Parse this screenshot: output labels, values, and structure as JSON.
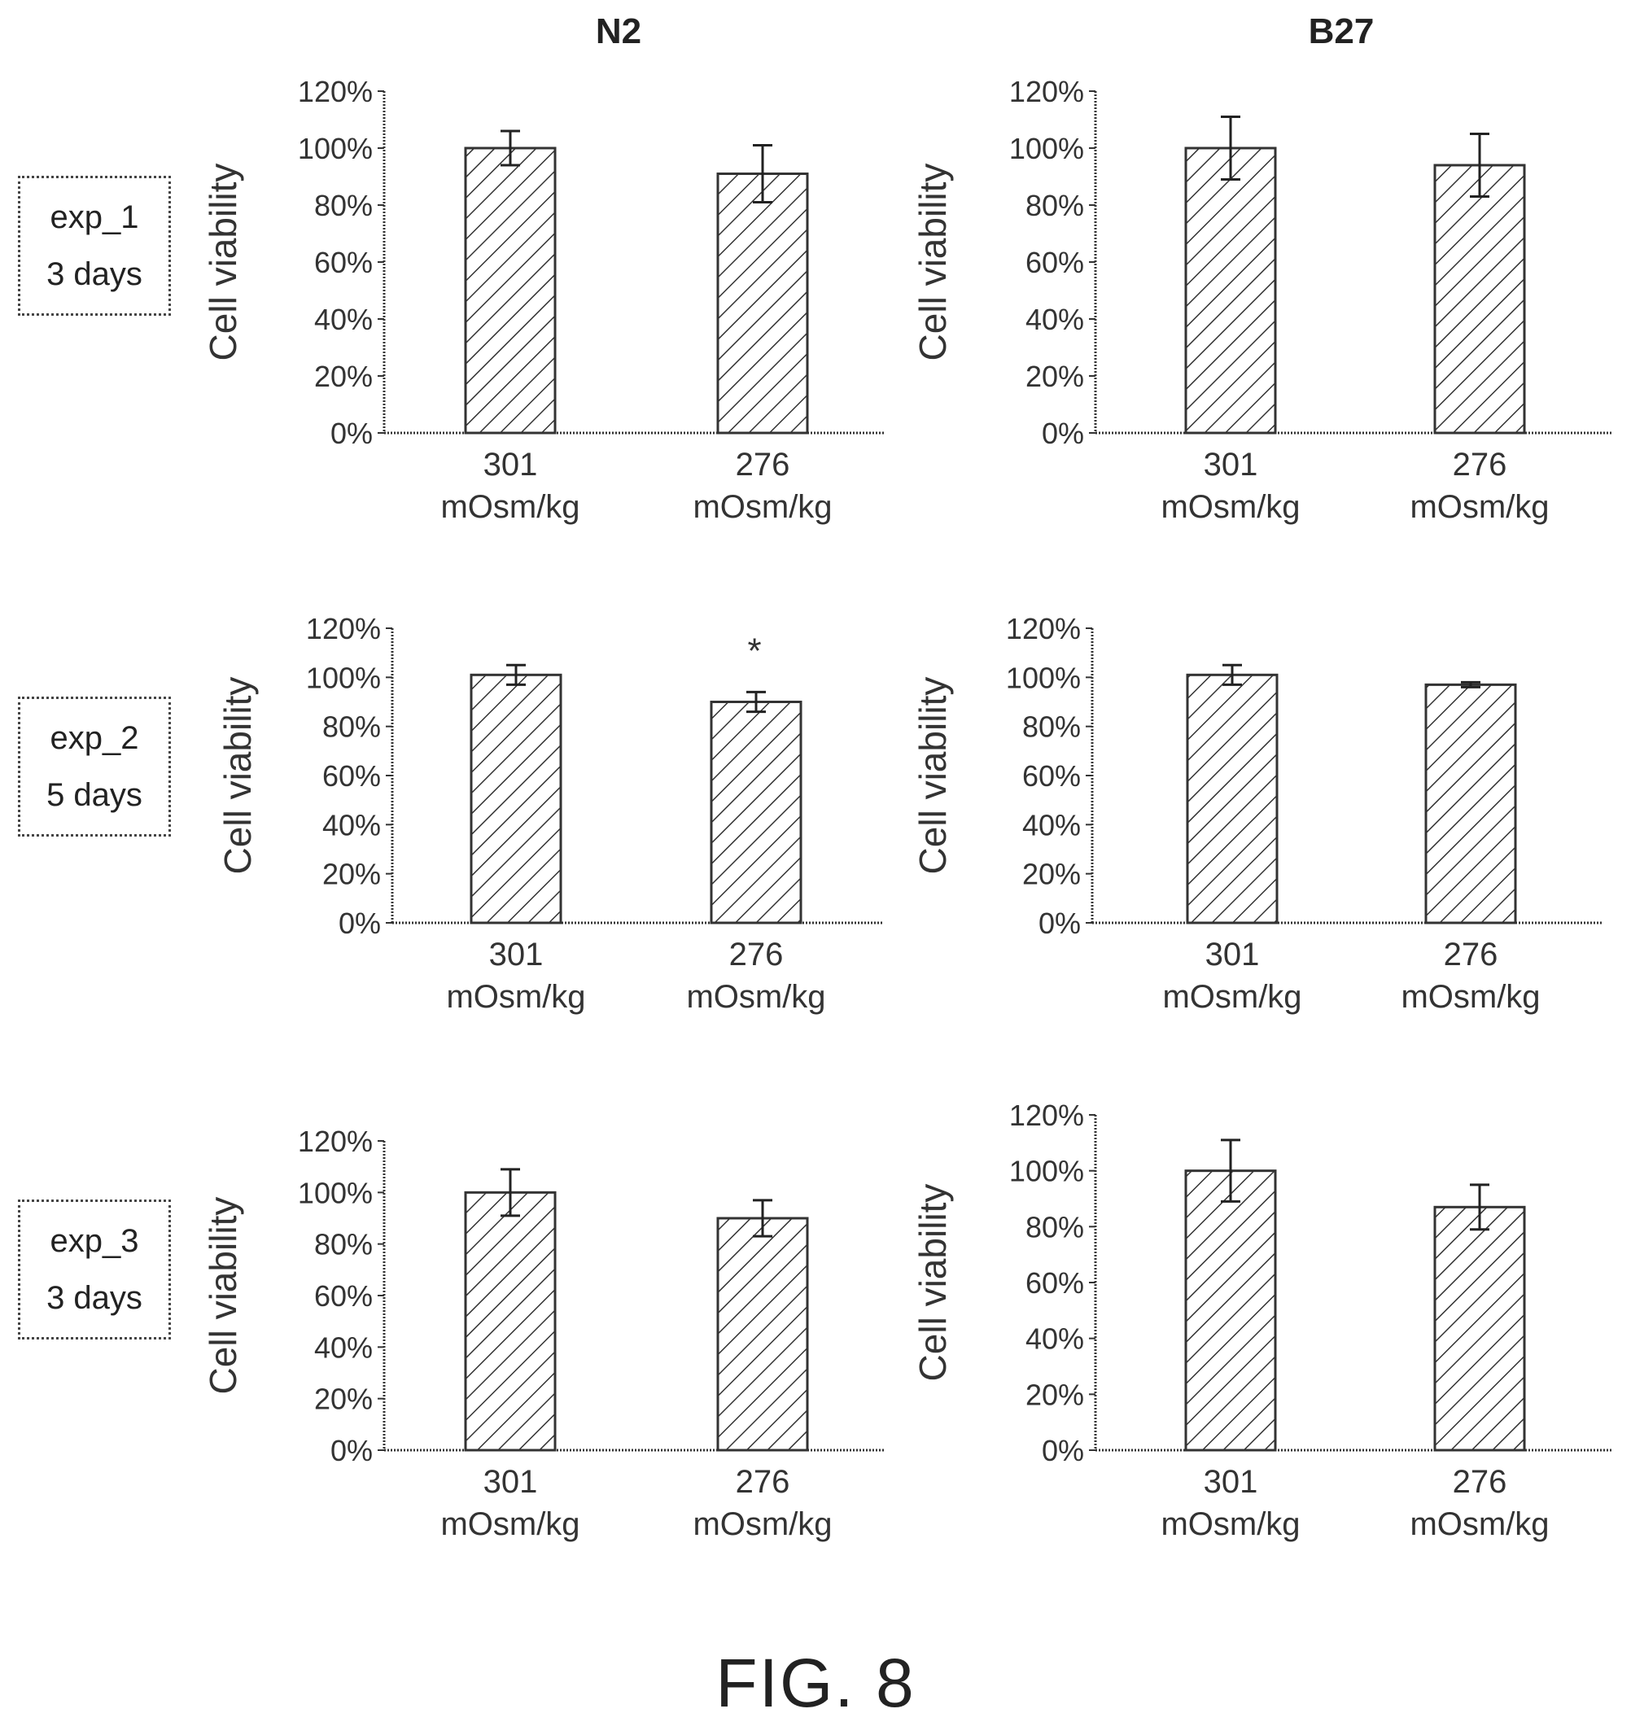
{
  "column_titles": [
    "N2",
    "B27"
  ],
  "row_labels": [
    {
      "line1": "exp_1",
      "line2": "3 days"
    },
    {
      "line1": "exp_2",
      "line2": "5 days"
    },
    {
      "line1": "exp_3",
      "line2": "3 days"
    }
  ],
  "figure_caption": "FIG. 8",
  "chart_data": [
    {
      "type": "bar",
      "panel": "exp_1 / N2",
      "ylabel": "Cell viability",
      "yticks": [
        "0%",
        "20%",
        "40%",
        "60%",
        "80%",
        "100%",
        "120%"
      ],
      "ylim": [
        0,
        120
      ],
      "categories": [
        [
          "301",
          "mOsm/kg"
        ],
        [
          "276",
          "mOsm/kg"
        ]
      ],
      "values": [
        100,
        91
      ],
      "errors": [
        6,
        10
      ],
      "annotations": [
        "",
        ""
      ]
    },
    {
      "type": "bar",
      "panel": "exp_1 / B27",
      "ylabel": "Cell viability",
      "yticks": [
        "0%",
        "20%",
        "40%",
        "60%",
        "80%",
        "100%",
        "120%"
      ],
      "ylim": [
        0,
        120
      ],
      "categories": [
        [
          "301",
          "mOsm/kg"
        ],
        [
          "276",
          "mOsm/kg"
        ]
      ],
      "values": [
        100,
        94
      ],
      "errors": [
        11,
        11
      ],
      "annotations": [
        "",
        ""
      ]
    },
    {
      "type": "bar",
      "panel": "exp_2 / N2",
      "ylabel": "Cell viability",
      "yticks": [
        "0%",
        "20%",
        "40%",
        "60%",
        "80%",
        "100%",
        "120%"
      ],
      "ylim": [
        0,
        120
      ],
      "categories": [
        [
          "301",
          "mOsm/kg"
        ],
        [
          "276",
          "mOsm/kg"
        ]
      ],
      "values": [
        101,
        90
      ],
      "errors": [
        4,
        4
      ],
      "annotations": [
        "",
        "*"
      ]
    },
    {
      "type": "bar",
      "panel": "exp_2 / B27",
      "ylabel": "Cell viability",
      "yticks": [
        "0%",
        "20%",
        "40%",
        "60%",
        "80%",
        "100%",
        "120%"
      ],
      "ylim": [
        0,
        120
      ],
      "categories": [
        [
          "301",
          "mOsm/kg"
        ],
        [
          "276",
          "mOsm/kg"
        ]
      ],
      "values": [
        101,
        97
      ],
      "errors": [
        4,
        1
      ],
      "annotations": [
        "",
        ""
      ]
    },
    {
      "type": "bar",
      "panel": "exp_3 / N2",
      "ylabel": "Cell viability",
      "yticks": [
        "0%",
        "20%",
        "40%",
        "60%",
        "80%",
        "100%",
        "120%"
      ],
      "ylim": [
        0,
        120
      ],
      "categories": [
        [
          "301",
          "mOsm/kg"
        ],
        [
          "276",
          "mOsm/kg"
        ]
      ],
      "values": [
        100,
        90
      ],
      "errors": [
        9,
        7
      ],
      "annotations": [
        "",
        ""
      ]
    },
    {
      "type": "bar",
      "panel": "exp_3 / B27",
      "ylabel": "Cell viability",
      "yticks": [
        "0%",
        "20%",
        "40%",
        "60%",
        "80%",
        "100%",
        "120%"
      ],
      "ylim": [
        0,
        120
      ],
      "categories": [
        [
          "301",
          "mOsm/kg"
        ],
        [
          "276",
          "mOsm/kg"
        ]
      ],
      "values": [
        100,
        87
      ],
      "errors": [
        11,
        8
      ],
      "annotations": [
        "",
        ""
      ]
    }
  ]
}
